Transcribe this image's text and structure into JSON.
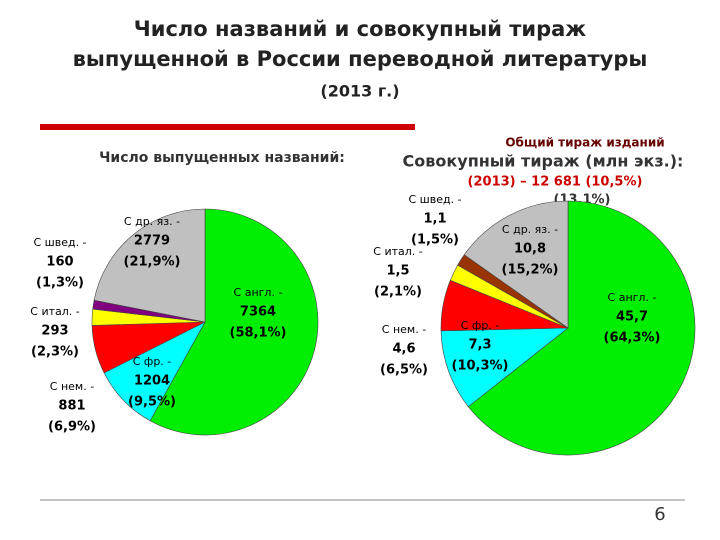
{
  "title_lines": [
    "Число названий и совокупный тираж",
    "выпущенной в России переводной литературы"
  ],
  "subtitle": "(2013 г.)",
  "slide_number": "6",
  "chart_data": [
    {
      "type": "pie",
      "title": "Число выпущенных названий:",
      "categories": [
        "С англ. -",
        "С фр. -",
        "С нем. -",
        "С итал. -",
        "С швед. -",
        "С др. яз. -"
      ],
      "values": [
        7364,
        1204,
        881,
        293,
        160,
        2779
      ],
      "percent_labels": [
        "(58,1%)",
        "(9,5%)",
        "(6,9%)",
        "(2,3%)",
        "(1,3%)",
        "(21,9%)"
      ],
      "colors": [
        "#00ee00",
        "#00ffff",
        "#ff0000",
        "#ffff00",
        "#800080",
        "#c0c0c0"
      ]
    },
    {
      "type": "pie",
      "title": "Совокупный тираж (млн экз.):",
      "annotations": [
        "Общий тираж изданий",
        "(2013) – 12 681 (10,5%)",
        "(13,1%)"
      ],
      "categories": [
        "С англ. -",
        "С фр. -",
        "С нем. -",
        "С итал. -",
        "С швед. -",
        "С др. яз. -"
      ],
      "values": [
        45.7,
        7.3,
        4.6,
        1.5,
        1.1,
        10.8
      ],
      "value_labels": [
        "45,7",
        "7,3",
        "4,6",
        "1,5",
        "1,1",
        "10,8"
      ],
      "percent_labels": [
        "(64,3%)",
        "(10,3%)",
        "(6,5%)",
        "(2,1%)",
        "(1,5%)",
        "(15,2%)"
      ],
      "colors": [
        "#00ee00",
        "#00ffff",
        "#ff0000",
        "#ffff00",
        "#993300",
        "#c0c0c0"
      ]
    }
  ]
}
